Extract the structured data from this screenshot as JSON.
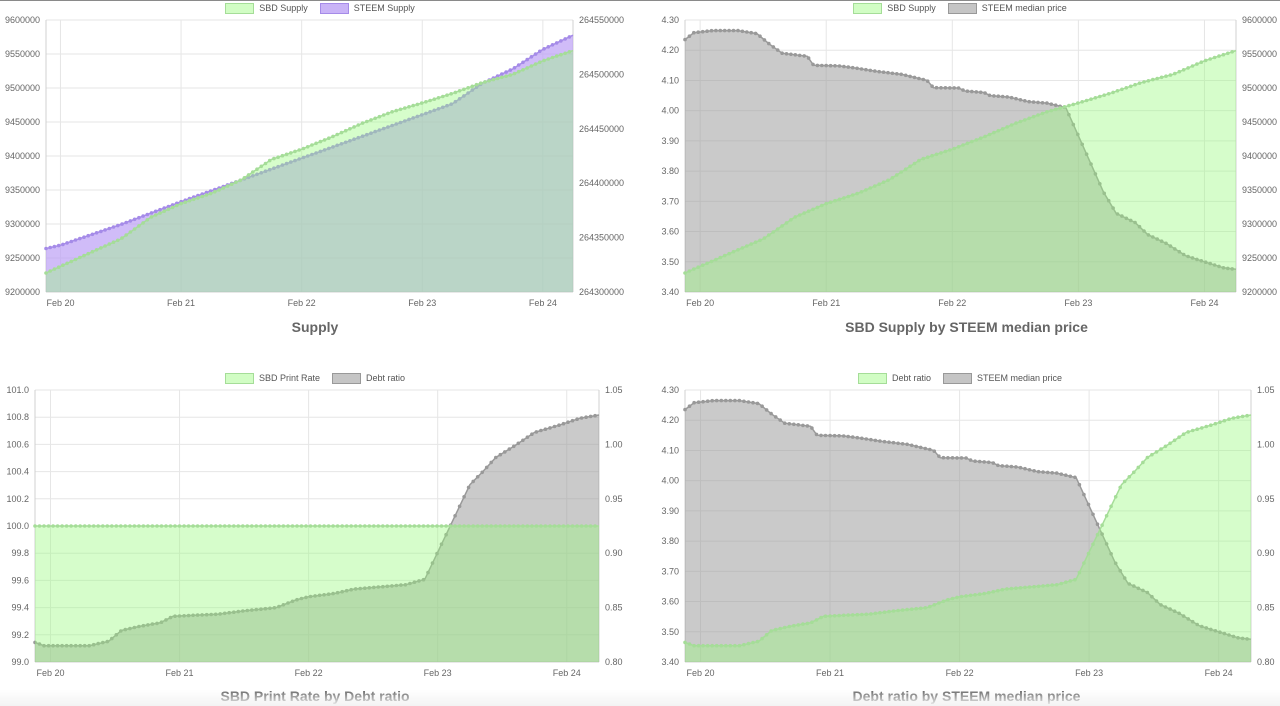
{
  "colors": {
    "green_fill": "rgba(152,251,125,0.40)",
    "green_line": "#a5dd98",
    "purple_fill": "rgba(188,160,245,0.70)",
    "purple_line": "#a58be8",
    "gray_fill": "rgba(150,150,150,0.50)",
    "gray_line": "#999999",
    "grid": "#e6e6e6"
  },
  "chart_data": [
    {
      "id": "supply",
      "type": "area",
      "title": "Supply",
      "x_labels": [
        "Feb 20",
        "Feb 21",
        "Feb 22",
        "Feb 23",
        "Feb 24"
      ],
      "x_range": [
        19.88,
        24.25
      ],
      "grid": true,
      "legend_position": "top",
      "y_left": {
        "min": 9200000,
        "max": 9600000,
        "ticks": [
          "9600000",
          "9550000",
          "9500000",
          "9450000",
          "9400000",
          "9350000",
          "9300000",
          "9250000",
          "9200000"
        ]
      },
      "y_right": {
        "min": 264300000,
        "max": 264550000,
        "ticks": [
          "264550000",
          "264500000",
          "264450000",
          "264400000",
          "264350000",
          "264300000"
        ]
      },
      "series": [
        {
          "name": "SBD Supply",
          "axis": "left",
          "color": "green",
          "points": [
            [
              19.88,
              9228000
            ],
            [
              20.25,
              9258000
            ],
            [
              20.5,
              9278000
            ],
            [
              20.75,
              9310000
            ],
            [
              21.0,
              9330000
            ],
            [
              21.25,
              9345000
            ],
            [
              21.5,
              9365000
            ],
            [
              21.75,
              9395000
            ],
            [
              22.0,
              9410000
            ],
            [
              22.25,
              9428000
            ],
            [
              22.5,
              9448000
            ],
            [
              22.75,
              9465000
            ],
            [
              23.0,
              9478000
            ],
            [
              23.25,
              9492000
            ],
            [
              23.5,
              9508000
            ],
            [
              23.75,
              9520000
            ],
            [
              24.0,
              9540000
            ],
            [
              24.25,
              9555000
            ]
          ]
        },
        {
          "name": "STEEM Supply",
          "axis": "right",
          "color": "purple",
          "points": [
            [
              19.88,
              264340000
            ],
            [
              20.0,
              264343000
            ],
            [
              20.5,
              264362000
            ],
            [
              21.0,
              264383000
            ],
            [
              21.5,
              264403000
            ],
            [
              22.0,
              264423000
            ],
            [
              22.5,
              264443000
            ],
            [
              23.0,
              264463000
            ],
            [
              23.25,
              264473000
            ],
            [
              23.5,
              264492000
            ],
            [
              23.75,
              264505000
            ],
            [
              24.0,
              264523000
            ],
            [
              24.25,
              264536000
            ]
          ]
        }
      ]
    },
    {
      "id": "sbd-supply-vs-price",
      "type": "area",
      "title": "SBD Supply by STEEM median price",
      "x_labels": [
        "Feb 20",
        "Feb 21",
        "Feb 22",
        "Feb 23",
        "Feb 24"
      ],
      "x_range": [
        19.88,
        24.25
      ],
      "grid": true,
      "legend_position": "top",
      "y_left": {
        "min": 3.4,
        "max": 4.3,
        "ticks": [
          "4.30",
          "4.20",
          "4.10",
          "4.00",
          "3.90",
          "3.80",
          "3.70",
          "3.60",
          "3.50",
          "3.40"
        ]
      },
      "y_right": {
        "min": 9200000,
        "max": 9600000,
        "ticks": [
          "9600000",
          "9550000",
          "9500000",
          "9450000",
          "9400000",
          "9350000",
          "9300000",
          "9250000",
          "9200000"
        ]
      },
      "series": [
        {
          "name": "SBD Supply",
          "axis": "right",
          "color": "green",
          "points": [
            [
              19.88,
              9228000
            ],
            [
              20.25,
              9258000
            ],
            [
              20.5,
              9278000
            ],
            [
              20.75,
              9310000
            ],
            [
              21.0,
              9330000
            ],
            [
              21.25,
              9345000
            ],
            [
              21.5,
              9365000
            ],
            [
              21.75,
              9395000
            ],
            [
              22.0,
              9410000
            ],
            [
              22.25,
              9428000
            ],
            [
              22.5,
              9448000
            ],
            [
              22.75,
              9465000
            ],
            [
              23.0,
              9478000
            ],
            [
              23.25,
              9492000
            ],
            [
              23.5,
              9508000
            ],
            [
              23.75,
              9520000
            ],
            [
              24.0,
              9540000
            ],
            [
              24.25,
              9555000
            ]
          ]
        },
        {
          "name": "STEEM median price",
          "axis": "left",
          "color": "gray",
          "points": [
            [
              19.88,
              4.235
            ],
            [
              19.95,
              4.258
            ],
            [
              20.1,
              4.265
            ],
            [
              20.3,
              4.265
            ],
            [
              20.45,
              4.255
            ],
            [
              20.55,
              4.22
            ],
            [
              20.65,
              4.19
            ],
            [
              20.85,
              4.18
            ],
            [
              20.9,
              4.15
            ],
            [
              21.1,
              4.148
            ],
            [
              21.25,
              4.14
            ],
            [
              21.4,
              4.13
            ],
            [
              21.6,
              4.12
            ],
            [
              21.8,
              4.1
            ],
            [
              21.85,
              4.076
            ],
            [
              22.05,
              4.075
            ],
            [
              22.1,
              4.065
            ],
            [
              22.25,
              4.06
            ],
            [
              22.3,
              4.05
            ],
            [
              22.45,
              4.045
            ],
            [
              22.6,
              4.03
            ],
            [
              22.75,
              4.025
            ],
            [
              22.9,
              4.01
            ],
            [
              23.2,
              3.73
            ],
            [
              23.3,
              3.66
            ],
            [
              23.45,
              3.63
            ],
            [
              23.55,
              3.59
            ],
            [
              23.7,
              3.56
            ],
            [
              23.85,
              3.52
            ],
            [
              24.0,
              3.5
            ],
            [
              24.15,
              3.48
            ],
            [
              24.25,
              3.475
            ]
          ]
        }
      ]
    },
    {
      "id": "print-rate-vs-debt",
      "type": "area",
      "title": "SBD Print Rate by Debt ratio",
      "x_labels": [
        "Feb 20",
        "Feb 21",
        "Feb 22",
        "Feb 23",
        "Feb 24"
      ],
      "x_range": [
        19.88,
        24.25
      ],
      "grid": true,
      "legend_position": "top",
      "y_left": {
        "min": 99.0,
        "max": 101.0,
        "ticks": [
          "101.0",
          "100.8",
          "100.6",
          "100.4",
          "100.2",
          "100.0",
          "99.8",
          "99.6",
          "99.4",
          "99.2",
          "99.0"
        ]
      },
      "y_right": {
        "min": 0.8,
        "max": 1.05,
        "ticks": [
          "1.05",
          "1.00",
          "0.95",
          "0.90",
          "0.85",
          "0.80"
        ]
      },
      "series": [
        {
          "name": "SBD Print Rate",
          "axis": "left",
          "color": "green",
          "points": [
            [
              19.88,
              100.0
            ],
            [
              24.25,
              100.0
            ]
          ]
        },
        {
          "name": "Debt ratio",
          "axis": "right",
          "color": "gray",
          "points": [
            [
              19.88,
              0.818
            ],
            [
              19.95,
              0.815
            ],
            [
              20.3,
              0.815
            ],
            [
              20.45,
              0.819
            ],
            [
              20.55,
              0.829
            ],
            [
              20.7,
              0.833
            ],
            [
              20.85,
              0.836
            ],
            [
              20.95,
              0.842
            ],
            [
              21.3,
              0.844
            ],
            [
              21.5,
              0.847
            ],
            [
              21.75,
              0.85
            ],
            [
              21.9,
              0.857
            ],
            [
              22.0,
              0.86
            ],
            [
              22.2,
              0.863
            ],
            [
              22.35,
              0.867
            ],
            [
              22.55,
              0.869
            ],
            [
              22.75,
              0.871
            ],
            [
              22.9,
              0.876
            ],
            [
              23.25,
              0.963
            ],
            [
              23.35,
              0.975
            ],
            [
              23.45,
              0.988
            ],
            [
              23.6,
              0.999
            ],
            [
              23.75,
              1.011
            ],
            [
              23.95,
              1.018
            ],
            [
              24.1,
              1.024
            ],
            [
              24.25,
              1.027
            ]
          ]
        }
      ]
    },
    {
      "id": "debt-vs-price",
      "type": "area",
      "title": "Debt ratio by STEEM median price",
      "x_labels": [
        "Feb 20",
        "Feb 21",
        "Feb 22",
        "Feb 23",
        "Feb 24"
      ],
      "x_range": [
        19.88,
        24.25
      ],
      "grid": true,
      "legend_position": "top",
      "y_left": {
        "min": 3.4,
        "max": 4.3,
        "ticks": [
          "4.30",
          "4.20",
          "4.10",
          "4.00",
          "3.90",
          "3.80",
          "3.70",
          "3.60",
          "3.50",
          "3.40"
        ]
      },
      "y_right": {
        "min": 0.8,
        "max": 1.05,
        "ticks": [
          "1.05",
          "1.00",
          "0.95",
          "0.90",
          "0.85",
          "0.80"
        ]
      },
      "series": [
        {
          "name": "Debt ratio",
          "axis": "right",
          "color": "green",
          "points": [
            [
              19.88,
              0.818
            ],
            [
              19.95,
              0.815
            ],
            [
              20.3,
              0.815
            ],
            [
              20.45,
              0.819
            ],
            [
              20.55,
              0.829
            ],
            [
              20.7,
              0.833
            ],
            [
              20.85,
              0.836
            ],
            [
              20.95,
              0.842
            ],
            [
              21.3,
              0.844
            ],
            [
              21.5,
              0.847
            ],
            [
              21.75,
              0.85
            ],
            [
              21.9,
              0.857
            ],
            [
              22.0,
              0.86
            ],
            [
              22.2,
              0.863
            ],
            [
              22.35,
              0.867
            ],
            [
              22.55,
              0.869
            ],
            [
              22.75,
              0.871
            ],
            [
              22.9,
              0.876
            ],
            [
              23.25,
              0.963
            ],
            [
              23.35,
              0.975
            ],
            [
              23.45,
              0.988
            ],
            [
              23.6,
              0.999
            ],
            [
              23.75,
              1.011
            ],
            [
              23.95,
              1.018
            ],
            [
              24.1,
              1.024
            ],
            [
              24.25,
              1.027
            ]
          ]
        },
        {
          "name": "STEEM median price",
          "axis": "left",
          "color": "gray",
          "points": [
            [
              19.88,
              4.235
            ],
            [
              19.95,
              4.258
            ],
            [
              20.1,
              4.265
            ],
            [
              20.3,
              4.265
            ],
            [
              20.45,
              4.255
            ],
            [
              20.55,
              4.22
            ],
            [
              20.65,
              4.19
            ],
            [
              20.85,
              4.18
            ],
            [
              20.9,
              4.15
            ],
            [
              21.1,
              4.148
            ],
            [
              21.25,
              4.14
            ],
            [
              21.4,
              4.13
            ],
            [
              21.6,
              4.12
            ],
            [
              21.8,
              4.1
            ],
            [
              21.85,
              4.076
            ],
            [
              22.05,
              4.075
            ],
            [
              22.1,
              4.065
            ],
            [
              22.25,
              4.06
            ],
            [
              22.3,
              4.05
            ],
            [
              22.45,
              4.045
            ],
            [
              22.6,
              4.03
            ],
            [
              22.75,
              4.025
            ],
            [
              22.9,
              4.01
            ],
            [
              23.2,
              3.73
            ],
            [
              23.3,
              3.66
            ],
            [
              23.45,
              3.63
            ],
            [
              23.55,
              3.59
            ],
            [
              23.7,
              3.56
            ],
            [
              23.85,
              3.52
            ],
            [
              24.0,
              3.5
            ],
            [
              24.15,
              3.48
            ],
            [
              24.25,
              3.475
            ]
          ]
        }
      ]
    }
  ]
}
